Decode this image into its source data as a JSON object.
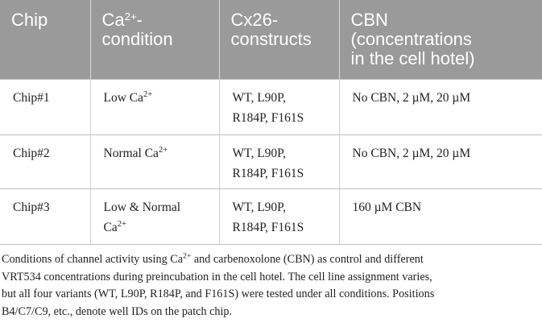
{
  "table": {
    "headers": [
      {
        "lines": [
          "Chip"
        ]
      },
      {
        "line1_pre": "Ca",
        "line1_sup": "2+",
        "line1_post": "-",
        "line2": "condition"
      },
      {
        "lines": [
          "Cx26-",
          "constructs"
        ]
      },
      {
        "lines": [
          "CBN",
          "(concentrations",
          "in the cell hotel)"
        ]
      }
    ],
    "rows": [
      {
        "chip": "Chip#1",
        "condition_pre": "Low Ca",
        "condition_sup": "2+",
        "constructs_line1": "WT, L90P,",
        "constructs_line2": "R184P, F161S",
        "cbn": "No CBN, 2 µM, 20 µM"
      },
      {
        "chip": "Chip#2",
        "condition_pre": "Normal Ca",
        "condition_sup": "2+",
        "constructs_line1": "WT, L90P,",
        "constructs_line2": "R184P, F161S",
        "cbn": "No CBN, 2 µM, 20 µM"
      },
      {
        "chip": "Chip#3",
        "condition_line1": "Low & Normal",
        "condition_line2_pre": "Ca",
        "condition_line2_sup": "2+",
        "constructs_line1": "WT, L90P,",
        "constructs_line2": "R184P, F161S",
        "cbn": "160 µM CBN"
      }
    ]
  },
  "caption": {
    "line1_pre": "Conditions of channel activity using Ca",
    "line1_sup": "2+",
    "line1_post": " and carbenoxolone (CBN) as control and different",
    "line2": "VRT534 concentrations during preincubation in the cell hotel. The cell line assignment varies,",
    "line3": "but all four variants (WT, L90P, R184P, and F161S) were tested under all conditions. Positions",
    "line4": "B4/C7/C9, etc., denote well IDs on the patch chip."
  },
  "colors": {
    "header_bg": "#9a9a9a",
    "header_text": "#ffffff",
    "body_text": "#222222",
    "rule": "#bdbdbd"
  }
}
